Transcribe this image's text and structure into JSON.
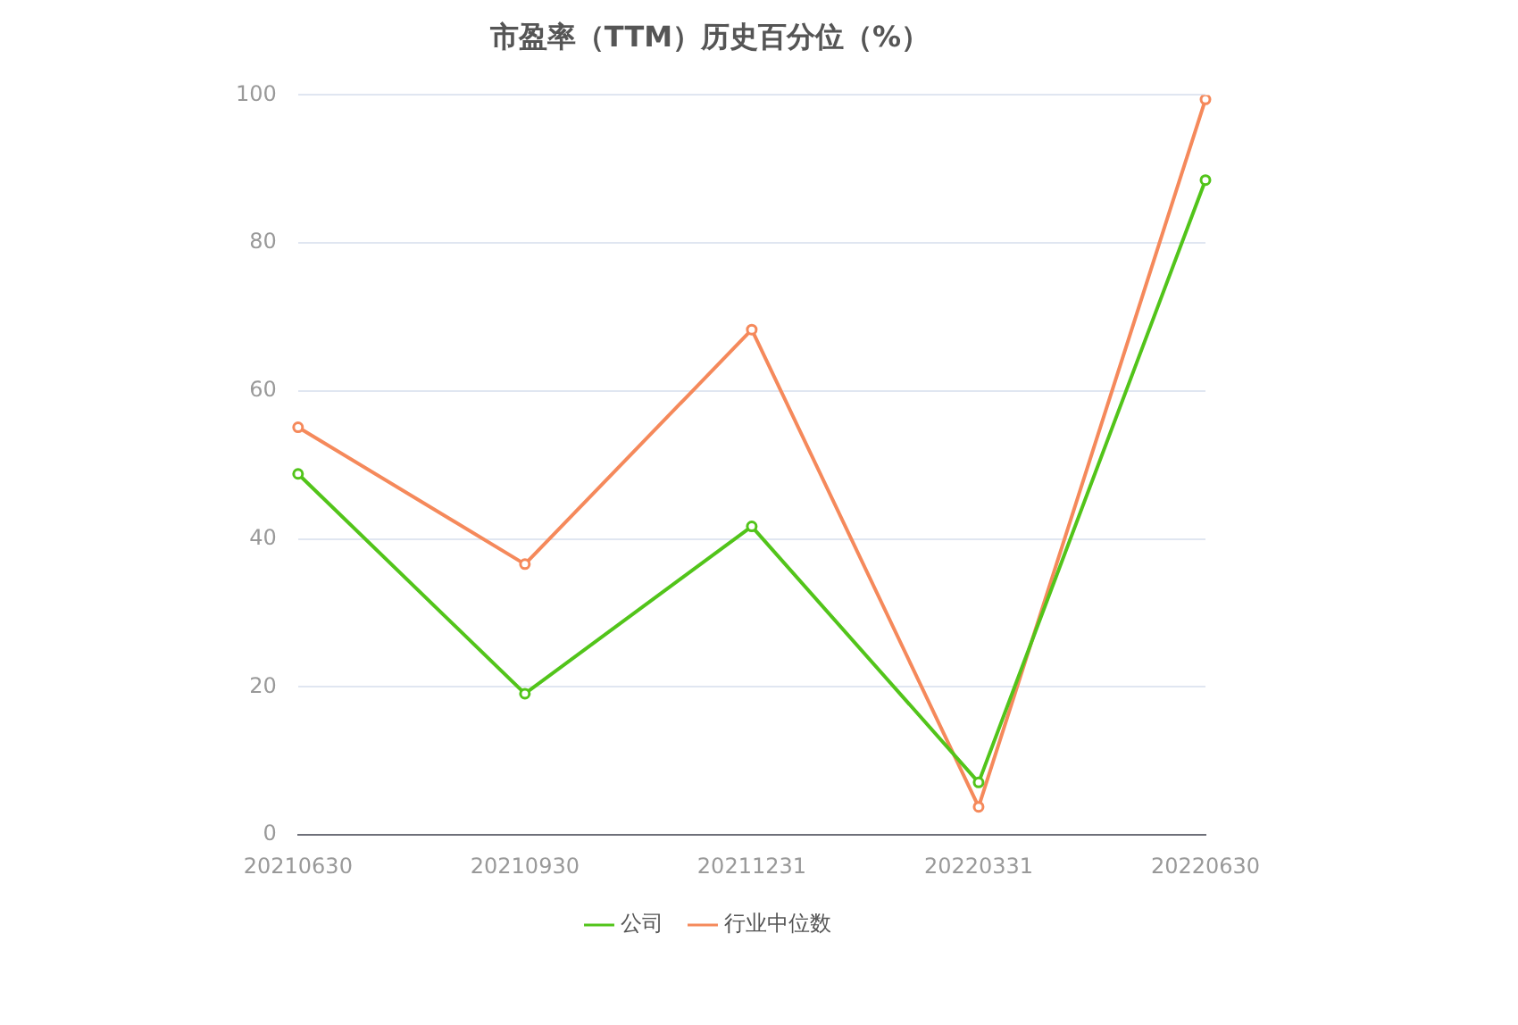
{
  "chart_data": {
    "type": "line",
    "title": "市盈率（TTM）历史百分位（%）",
    "categories": [
      "20210630",
      "20210930",
      "20211231",
      "20220331",
      "20220630"
    ],
    "series": [
      {
        "name": "公司",
        "color": "#52c41a",
        "values": [
          48.8,
          19.1,
          41.7,
          7.1,
          88.5
        ]
      },
      {
        "name": "行业中位数",
        "color": "#f5895b",
        "values": [
          55.1,
          36.6,
          68.3,
          3.8,
          99.4
        ]
      }
    ],
    "ylim": [
      0,
      100
    ],
    "yticks": [
      0,
      20,
      40,
      60,
      80,
      100
    ],
    "grid": "y",
    "legend": "bottom",
    "marker": "circle",
    "line_style": "solid"
  }
}
